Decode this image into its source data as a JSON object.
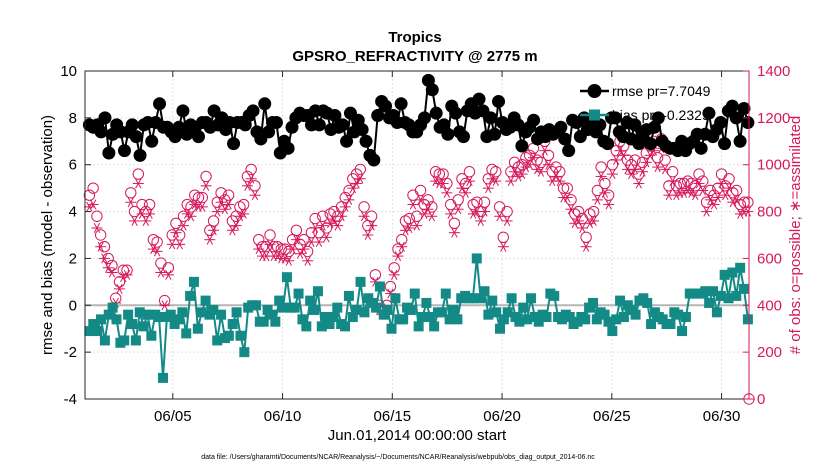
{
  "chart_data": {
    "type": "line",
    "title": "Tropics",
    "subtitle": "GPSRO_REFRACTIVITY @ 2775 m",
    "xlabel": "Jun.01,2014 00:00:00 start",
    "ylabel": "rmse and bias (model - observation)",
    "ylabel_right": "# of obs: o=possible; ∗=assimilated",
    "footnote": "data file: /Users/gharamti/Documents/NCAR/Reanalysis/~/Documents/NCAR/Reanalysis/webpub/obs_diag_output_2014-06.nc",
    "xlim": [
      1.0,
      31.25
    ],
    "ylim": [
      -4,
      10
    ],
    "ylim_right": [
      0,
      1400
    ],
    "x_ticks": [
      5,
      10,
      15,
      20,
      25,
      30
    ],
    "x_tick_labels": [
      "06/05",
      "06/10",
      "06/15",
      "06/20",
      "06/25",
      "06/30"
    ],
    "y_ticks": [
      -4,
      -2,
      0,
      2,
      4,
      6,
      8,
      10
    ],
    "y_tick_labels": [
      "-4",
      "-2",
      "0",
      "2",
      "4",
      "6",
      "8",
      "10"
    ],
    "y_right_ticks": [
      0,
      200,
      400,
      600,
      800,
      1000,
      1200,
      1400
    ],
    "y_right_tick_labels": [
      "0",
      "200",
      "400",
      "600",
      "800",
      "1000",
      "1200",
      "1400"
    ],
    "colors": {
      "rmse": "#000000",
      "bias": "#138a86",
      "obs": "#d6195c",
      "zero_line": "#b5b5b5",
      "axis": "#262626"
    },
    "series": [
      {
        "name": "rmse",
        "legend": "rmse pr=7.7049",
        "axis": "left",
        "values": [
          7.7,
          7.6,
          7.7,
          7.4,
          8.0,
          6.5,
          7.3,
          7.7,
          7.4,
          6.6,
          7.4,
          7.7,
          7.2,
          6.4,
          7.7,
          7.8,
          7.0,
          7.8,
          8.6,
          7.6,
          7.6,
          7.4,
          7.2,
          7.6,
          8.3,
          7.3,
          7.7,
          7.6,
          7.2,
          7.8,
          7.8,
          7.6,
          8.3,
          7.7,
          8.0,
          7.5,
          7.8,
          6.9,
          7.8,
          7.8,
          7.7,
          8.1,
          8.3,
          7.4,
          7.1,
          8.6,
          7.4,
          7.8,
          7.8,
          6.5,
          7.0,
          6.7,
          7.6,
          8.0,
          8.2,
          8.1,
          8.1,
          7.7,
          8.3,
          7.7,
          8.3,
          8.2,
          7.5,
          8.1,
          7.6,
          7.7,
          7.0,
          8.2,
          7.4,
          7.9,
          7.5,
          7.0,
          6.4,
          6.2,
          8.1,
          8.7,
          8.5,
          8.0,
          8.1,
          7.8,
          8.6,
          7.8,
          7.7,
          7.4,
          7.4,
          7.7,
          8.0,
          9.6,
          9.2,
          8.2,
          7.6,
          7.7,
          7.3,
          8.5,
          8.2,
          7.4,
          7.2,
          8.3,
          8.6,
          8.2,
          8.8,
          8.3,
          7.2,
          8.0,
          7.3,
          8.7,
          7.8,
          7.5,
          7.6,
          8.0,
          7.7,
          6.8,
          7.4,
          7.6,
          7.9,
          7.1,
          7.4,
          7.2,
          7.5,
          7.3,
          7.4,
          7.6,
          7.1,
          6.6,
          7.9,
          7.8,
          7.2,
          8.0,
          7.5,
          7.8,
          7.4,
          7.7,
          7.0,
          6.9,
          8.0,
          8.0,
          7.4,
          7.2,
          7.8,
          7.1,
          7.7,
          6.9,
          7.3,
          7.5,
          6.9,
          7.6,
          8.0,
          7.0,
          6.8,
          6.7,
          6.7,
          6.6,
          7.0,
          6.6,
          6.9,
          7.0,
          7.3,
          6.7,
          7.3,
          8.2,
          7.2,
          7.5,
          7.8,
          6.9,
          8.3,
          8.5,
          8.0,
          7.0,
          8.4,
          7.8
        ]
      },
      {
        "name": "bias",
        "legend": "bias pr=-0.2329",
        "axis": "left",
        "values": [
          -1.1,
          -0.8,
          -1.1,
          -0.6,
          -1.5,
          -0.4,
          -0.1,
          -0.6,
          -1.6,
          -1.5,
          -0.4,
          -0.8,
          -1.5,
          -0.3,
          -0.9,
          -0.4,
          -1.3,
          -0.4,
          -0.5,
          -3.1,
          -0.5,
          -0.4,
          -0.8,
          -0.6,
          -0.3,
          -1.2,
          0.4,
          1.0,
          -1.0,
          -0.3,
          0.2,
          -0.4,
          -0.2,
          -1.5,
          -0.4,
          -1.4,
          -1.3,
          -0.8,
          -0.3,
          -1.3,
          -2.0,
          -0.1,
          0.0,
          0.0,
          -0.7,
          -0.7,
          -0.2,
          -0.4,
          -0.7,
          0.2,
          -0.1,
          1.2,
          -0.1,
          -0.1,
          0.5,
          -0.6,
          -0.9,
          0.2,
          -0.2,
          0.6,
          -0.9,
          -0.5,
          -0.8,
          -0.5,
          -0.1,
          -0.8,
          -0.9,
          0.4,
          -0.5,
          -0.2,
          1.0,
          -0.3,
          0.3,
          0.1,
          -0.1,
          0.8,
          -0.4,
          -0.2,
          -1.0,
          0.3,
          -0.6,
          -0.6,
          -0.1,
          -0.2,
          0.5,
          -0.9,
          -0.5,
          0.1,
          -0.5,
          -0.9,
          -0.3,
          -0.3,
          0.5,
          -0.6,
          -0.2,
          -0.6,
          0.3,
          0.4,
          0.3,
          0.3,
          2.0,
          0.3,
          0.6,
          -0.4,
          0.2,
          -0.3,
          -1.0,
          -0.6,
          -0.3,
          0.3,
          -0.5,
          -0.7,
          -0.1,
          -0.6,
          0.3,
          -0.5,
          -0.7,
          -0.4,
          -0.5,
          0.5,
          0.4,
          -0.5,
          -0.6,
          -0.4,
          -0.5,
          -0.8,
          -0.7,
          -0.5,
          -0.6,
          -0.1,
          0.1,
          -0.6,
          -0.3,
          -0.4,
          -0.7,
          -1.1,
          -0.6,
          0.2,
          -0.5,
          0.0,
          -0.2,
          -0.4,
          0.2,
          0.3,
          0.1,
          -0.8,
          -0.3,
          -0.5,
          -0.6,
          -0.8,
          -0.8,
          -0.3,
          -0.4,
          -1.1,
          -0.5,
          0.5,
          0.5,
          0.5,
          0.5,
          0.6,
          0.1,
          0.6,
          -0.3,
          0.4,
          1.3,
          0.3,
          1.4,
          0.4,
          1.6,
          0.7,
          -0.6
        ]
      },
      {
        "name": "obs_possible",
        "marker": "circle",
        "axis": "right",
        "values": [
          870,
          900,
          780,
          700,
          650,
          600,
          570,
          430,
          500,
          550,
          550,
          880,
          800,
          960,
          830,
          800,
          830,
          680,
          670,
          580,
          420,
          560,
          700,
          750,
          700,
          780,
          830,
          820,
          870,
          860,
          860,
          950,
          720,
          760,
          840,
          880,
          850,
          870,
          760,
          780,
          820,
          830,
          950,
          980,
          910,
          680,
          650,
          650,
          700,
          650,
          650,
          640,
          640,
          630,
          680,
          720,
          660,
          680,
          630,
          710,
          770,
          710,
          780,
          730,
          790,
          800,
          780,
          820,
          860,
          890,
          940,
          960,
          980,
          820,
          740,
          780,
          530,
          400,
          380,
          400,
          480,
          560,
          640,
          680,
          760,
          770,
          870,
          780,
          890,
          830,
          850,
          820,
          970,
          960,
          960,
          920,
          830,
          750,
          850,
          940,
          920,
          970,
          830,
          840,
          800,
          840,
          940,
          980,
          970,
          820,
          690,
          800,
          970,
          1010,
          990,
          1000,
          1030,
          1040,
          1070,
          1020,
          1010,
          1100,
          1040,
          970,
          990,
          970,
          900,
          900,
          850,
          790,
          800,
          770,
          690,
          790,
          800,
          890,
          990,
          920,
          870,
          1000,
          1060,
          1100,
          1080,
          1020,
          1000,
          1020,
          960,
          1010,
          1050,
          1080,
          1100,
          1030,
          1110,
          1020,
          910,
          970,
          910,
          920,
          920,
          930,
          920,
          910,
          960,
          930,
          840,
          890,
          870,
          900,
          960,
          910,
          940,
          880,
          890,
          830,
          840,
          840
        ]
      },
      {
        "name": "obs_assimilated",
        "marker": "asterisk",
        "axis": "right",
        "values": [
          820,
          830,
          730,
          650,
          600,
          560,
          540,
          410,
          470,
          520,
          530,
          840,
          760,
          920,
          790,
          760,
          790,
          640,
          630,
          540,
          400,
          530,
          660,
          710,
          660,
          740,
          790,
          780,
          830,
          820,
          820,
          910,
          680,
          720,
          800,
          840,
          810,
          830,
          720,
          740,
          780,
          790,
          910,
          940,
          870,
          640,
          610,
          610,
          660,
          610,
          610,
          600,
          600,
          590,
          640,
          680,
          620,
          640,
          590,
          670,
          730,
          670,
          740,
          690,
          750,
          760,
          740,
          780,
          820,
          850,
          900,
          920,
          940,
          780,
          700,
          740,
          500,
          380,
          360,
          380,
          450,
          530,
          610,
          650,
          720,
          730,
          830,
          740,
          850,
          790,
          810,
          780,
          930,
          920,
          920,
          880,
          790,
          710,
          810,
          900,
          880,
          930,
          790,
          800,
          760,
          800,
          900,
          940,
          930,
          780,
          650,
          760,
          930,
          970,
          950,
          960,
          990,
          1000,
          1030,
          980,
          970,
          1060,
          1000,
          930,
          950,
          930,
          860,
          860,
          810,
          750,
          760,
          730,
          650,
          750,
          760,
          850,
          950,
          880,
          830,
          960,
          1020,
          1060,
          1040,
          980,
          960,
          980,
          920,
          970,
          1010,
          1040,
          1060,
          990,
          1070,
          980,
          870,
          930,
          870,
          880,
          880,
          890,
          880,
          870,
          920,
          890,
          800,
          850,
          830,
          860,
          920,
          870,
          900,
          840,
          850,
          790,
          800,
          800
        ]
      }
    ]
  }
}
